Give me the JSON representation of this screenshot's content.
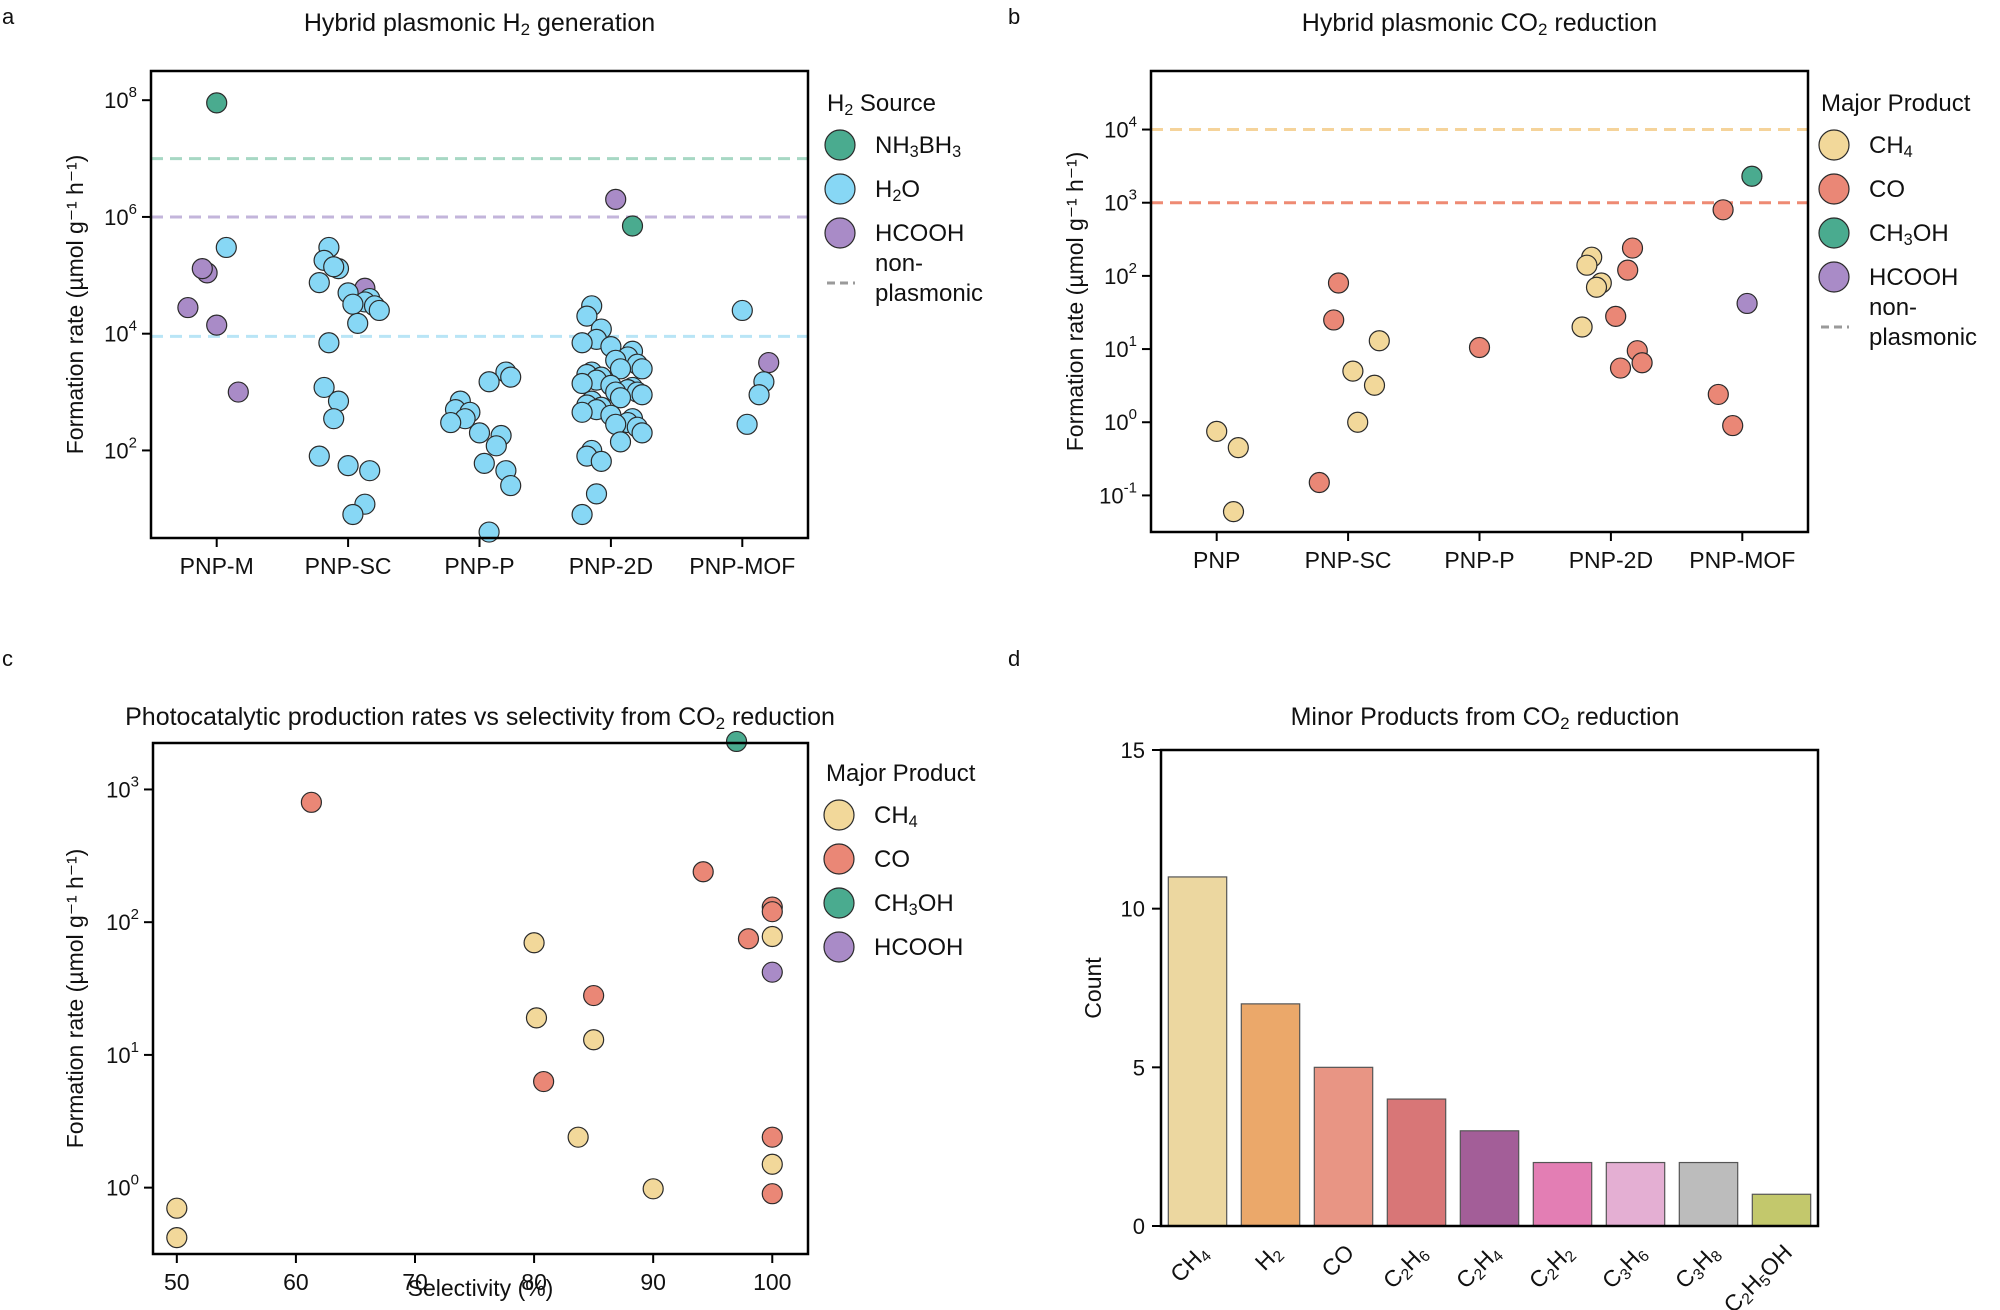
{
  "panel_labels": [
    "a",
    "b",
    "c",
    "d"
  ],
  "colors": {
    "NH3BH3": "#4aab8f",
    "H2O": "#87d7f5",
    "HCOOH": "#a98bc7",
    "CH4": "#f2d89a",
    "CO": "#ea8776",
    "CH3OH": "#4aab8f",
    "nonplasmonic": "#9a9a9a",
    "line_NH3BH3": "#a7d8c4",
    "line_HCOOH": "#c3b5db",
    "line_H2O": "#b9e5f6",
    "line_CH4": "#f5d39a",
    "line_CO": "#ee8a73"
  },
  "chart_data": [
    {
      "type": "scatter",
      "title_parts": [
        "Hybrid plasmonic H",
        "2",
        " generation"
      ],
      "ylabel": "Formation rate (µmol g⁻¹ h⁻¹)",
      "yscale": "log",
      "ylim_exp": [
        0.5,
        8.5
      ],
      "yticks": [
        {
          "base": "10",
          "exp": "8",
          "e": 8
        },
        {
          "base": "10",
          "exp": "6",
          "e": 6
        },
        {
          "base": "10",
          "exp": "4",
          "e": 4
        },
        {
          "base": "10",
          "exp": "2",
          "e": 2
        }
      ],
      "categories": [
        "PNP-M",
        "PNP-SC",
        "PNP-P",
        "PNP-2D",
        "PNP-MOF"
      ],
      "legend_title": {
        "main": "H",
        "sub": "2",
        "rest": " Source"
      },
      "legend": [
        {
          "key": "NH3BH3",
          "parts": [
            [
              "NH",
              ""
            ],
            [
              "3",
              "sub"
            ],
            [
              "BH",
              ""
            ],
            [
              "3",
              "sub"
            ]
          ]
        },
        {
          "key": "H2O",
          "parts": [
            [
              "H",
              ""
            ],
            [
              "2",
              "sub"
            ],
            [
              "O",
              ""
            ]
          ]
        },
        {
          "key": "HCOOH",
          "parts": [
            [
              "HCOOH",
              ""
            ]
          ]
        }
      ],
      "nonplasmonic_label": [
        "non-",
        "plasmonic"
      ],
      "reference_lines": [
        {
          "key": "line_NH3BH3",
          "value": 10000000
        },
        {
          "key": "line_HCOOH",
          "value": 1000000
        },
        {
          "key": "line_H2O",
          "value": 9000
        }
      ],
      "series": [
        {
          "name": "NH3BH3",
          "points": [
            [
              0,
              90000000
            ],
            [
              3,
              700000
            ]
          ]
        },
        {
          "name": "HCOOH",
          "points": [
            [
              0,
              110000
            ],
            [
              0,
              130000
            ],
            [
              0,
              28000
            ],
            [
              0,
              14000
            ],
            [
              0,
              1000
            ],
            [
              1,
              60000
            ],
            [
              3,
              2000000
            ],
            [
              4,
              3200
            ]
          ]
        },
        {
          "name": "H2O",
          "points": [
            [
              0,
              300000
            ],
            [
              1,
              300000
            ],
            [
              1,
              180000
            ],
            [
              1,
              130000
            ],
            [
              1,
              140000
            ],
            [
              1,
              75000
            ],
            [
              1,
              50000
            ],
            [
              1,
              40000
            ],
            [
              1,
              35000
            ],
            [
              1,
              32000
            ],
            [
              1,
              30000
            ],
            [
              1,
              25000
            ],
            [
              1,
              15000
            ],
            [
              1,
              7000
            ],
            [
              1,
              1200
            ],
            [
              1,
              700
            ],
            [
              1,
              350
            ],
            [
              1,
              80
            ],
            [
              1,
              55
            ],
            [
              1,
              45
            ],
            [
              1,
              12
            ],
            [
              1,
              8
            ],
            [
              2,
              2200
            ],
            [
              2,
              1800
            ],
            [
              2,
              1500
            ],
            [
              2,
              700
            ],
            [
              2,
              500
            ],
            [
              2,
              450
            ],
            [
              2,
              350
            ],
            [
              2,
              300
            ],
            [
              2,
              200
            ],
            [
              2,
              180
            ],
            [
              2,
              120
            ],
            [
              2,
              60
            ],
            [
              2,
              45
            ],
            [
              2,
              25
            ],
            [
              2,
              4
            ],
            [
              3,
              30000
            ],
            [
              3,
              20000
            ],
            [
              3,
              12000
            ],
            [
              3,
              8000
            ],
            [
              3,
              7000
            ],
            [
              3,
              6000
            ],
            [
              3,
              5000
            ],
            [
              3,
              4000
            ],
            [
              3,
              3500
            ],
            [
              3,
              3000
            ],
            [
              3,
              2500
            ],
            [
              3,
              2500
            ],
            [
              3,
              2200
            ],
            [
              3,
              2000
            ],
            [
              3,
              1800
            ],
            [
              3,
              1600
            ],
            [
              3,
              1400
            ],
            [
              3,
              1300
            ],
            [
              3,
              1200
            ],
            [
              3,
              1100
            ],
            [
              3,
              1000
            ],
            [
              3,
              1000
            ],
            [
              3,
              900
            ],
            [
              3,
              800
            ],
            [
              3,
              700
            ],
            [
              3,
              600
            ],
            [
              3,
              550
            ],
            [
              3,
              500
            ],
            [
              3,
              450
            ],
            [
              3,
              400
            ],
            [
              3,
              350
            ],
            [
              3,
              300
            ],
            [
              3,
              280
            ],
            [
              3,
              250
            ],
            [
              3,
              200
            ],
            [
              3,
              140
            ],
            [
              3,
              100
            ],
            [
              3,
              80
            ],
            [
              3,
              65
            ],
            [
              3,
              18
            ],
            [
              3,
              8
            ],
            [
              4,
              25000
            ],
            [
              4,
              1500
            ],
            [
              4,
              900
            ],
            [
              4,
              280
            ]
          ]
        }
      ]
    },
    {
      "type": "scatter",
      "title_parts": [
        "Hybrid plasmonic CO",
        "2",
        " reduction"
      ],
      "ylabel": "Formation rate (µmol g⁻¹ h⁻¹)",
      "yscale": "log",
      "ylim_exp": [
        -1.5,
        4.8
      ],
      "yticks": [
        {
          "base": "10",
          "exp": "4",
          "e": 4
        },
        {
          "base": "10",
          "exp": "3",
          "e": 3
        },
        {
          "base": "10",
          "exp": "2",
          "e": 2
        },
        {
          "base": "10",
          "exp": "1",
          "e": 1
        },
        {
          "base": "10",
          "exp": "0",
          "e": 0
        },
        {
          "base": "10",
          "exp": "-1",
          "e": -1
        }
      ],
      "categories": [
        "PNP",
        "PNP-SC",
        "PNP-P",
        "PNP-2D",
        "PNP-MOF"
      ],
      "legend_title": {
        "main": "Major Product",
        "sub": "",
        "rest": ""
      },
      "legend": [
        {
          "key": "CH4",
          "parts": [
            [
              "CH",
              ""
            ],
            [
              "4",
              "sub"
            ]
          ]
        },
        {
          "key": "CO",
          "parts": [
            [
              "CO",
              ""
            ]
          ]
        },
        {
          "key": "CH3OH",
          "parts": [
            [
              "CH",
              ""
            ],
            [
              "3",
              "sub"
            ],
            [
              "OH",
              ""
            ]
          ]
        },
        {
          "key": "HCOOH",
          "parts": [
            [
              "HCOOH",
              ""
            ]
          ]
        }
      ],
      "nonplasmonic_label": [
        "non-",
        "plasmonic"
      ],
      "reference_lines": [
        {
          "key": "line_CH4",
          "value": 10000
        },
        {
          "key": "line_CO",
          "value": 1000
        }
      ],
      "series": [
        {
          "name": "CH4",
          "points": [
            [
              0,
              0.75
            ],
            [
              0,
              0.45
            ],
            [
              0,
              0.06
            ],
            [
              1,
              5
            ],
            [
              1,
              3.2
            ],
            [
              1,
              13
            ],
            [
              1,
              1.0
            ],
            [
              3,
              180
            ],
            [
              3,
              140
            ],
            [
              3,
              80
            ],
            [
              3,
              70
            ],
            [
              3,
              20
            ]
          ]
        },
        {
          "name": "CO",
          "points": [
            [
              1,
              80
            ],
            [
              1,
              25
            ],
            [
              1,
              0.15
            ],
            [
              2,
              10.5
            ],
            [
              3,
              240
            ],
            [
              3,
              120
            ],
            [
              3,
              28
            ],
            [
              3,
              9.5
            ],
            [
              3,
              6.5
            ],
            [
              3,
              5.5
            ],
            [
              4,
              800
            ],
            [
              4,
              2.4
            ],
            [
              4,
              0.9
            ]
          ]
        },
        {
          "name": "CH3OH",
          "points": [
            [
              4,
              2300
            ]
          ]
        },
        {
          "name": "HCOOH",
          "points": [
            [
              4,
              42
            ]
          ]
        }
      ]
    },
    {
      "type": "scatter",
      "title_parts": [
        "Photocatalytic production rates vs selectivity from CO",
        "2",
        " reduction"
      ],
      "xlabel": "Selectivity (%)",
      "ylabel": "Formation rate (µmol g⁻¹ h⁻¹)",
      "xlim": [
        48,
        103
      ],
      "xticks": [
        "50",
        "60",
        "70",
        "80",
        "90",
        "100"
      ],
      "yscale": "log",
      "ylim_exp": [
        -0.5,
        3.35
      ],
      "yticks": [
        {
          "base": "10",
          "exp": "3",
          "e": 3
        },
        {
          "base": "10",
          "exp": "2",
          "e": 2
        },
        {
          "base": "10",
          "exp": "1",
          "e": 1
        },
        {
          "base": "10",
          "exp": "0",
          "e": 0
        }
      ],
      "legend_title": {
        "main": "Major Product",
        "sub": "",
        "rest": ""
      },
      "legend": [
        {
          "key": "CH4",
          "parts": [
            [
              "CH",
              ""
            ],
            [
              "4",
              "sub"
            ]
          ]
        },
        {
          "key": "CO",
          "parts": [
            [
              "CO",
              ""
            ]
          ]
        },
        {
          "key": "CH3OH",
          "parts": [
            [
              "CH",
              ""
            ],
            [
              "3",
              "sub"
            ],
            [
              "OH",
              ""
            ]
          ]
        },
        {
          "key": "HCOOH",
          "parts": [
            [
              "HCOOH",
              ""
            ]
          ]
        }
      ],
      "series": [
        {
          "name": "CH4",
          "points": [
            [
              50,
              0.7
            ],
            [
              50,
              0.42
            ],
            [
              80,
              70
            ],
            [
              80.2,
              19
            ],
            [
              85,
              13
            ],
            [
              83.7,
              2.4
            ],
            [
              90,
              0.98
            ],
            [
              100,
              78
            ],
            [
              100,
              1.5
            ]
          ]
        },
        {
          "name": "CO",
          "points": [
            [
              61.3,
              800
            ],
            [
              94.2,
              240
            ],
            [
              98,
              75
            ],
            [
              100,
              130
            ],
            [
              100,
              120
            ],
            [
              85,
              28
            ],
            [
              80.8,
              6.3
            ],
            [
              100,
              2.4
            ],
            [
              100,
              0.9
            ]
          ]
        },
        {
          "name": "CH3OH",
          "points": [
            [
              97,
              2300
            ]
          ]
        },
        {
          "name": "HCOOH",
          "points": [
            [
              100,
              42
            ]
          ]
        }
      ]
    },
    {
      "type": "bar",
      "title_parts": [
        "Minor Products from CO",
        "2",
        " reduction"
      ],
      "ylabel": "Count",
      "ylim": [
        0,
        15
      ],
      "yticks": [
        "0",
        "5",
        "10",
        "15"
      ],
      "categories": [
        {
          "parts": [
            [
              "CH",
              ""
            ],
            [
              "4",
              "sub"
            ]
          ]
        },
        {
          "parts": [
            [
              "H",
              ""
            ],
            [
              "2",
              "sub"
            ]
          ]
        },
        {
          "parts": [
            [
              "CO",
              ""
            ]
          ]
        },
        {
          "parts": [
            [
              "C",
              ""
            ],
            [
              "2",
              "sub"
            ],
            [
              "H",
              ""
            ],
            [
              "6",
              "sub"
            ]
          ]
        },
        {
          "parts": [
            [
              "C",
              ""
            ],
            [
              "2",
              "sub"
            ],
            [
              "H",
              ""
            ],
            [
              "4",
              "sub"
            ]
          ]
        },
        {
          "parts": [
            [
              "C",
              ""
            ],
            [
              "2",
              "sub"
            ],
            [
              "H",
              ""
            ],
            [
              "2",
              "sub"
            ]
          ]
        },
        {
          "parts": [
            [
              "C",
              ""
            ],
            [
              "3",
              "sub"
            ],
            [
              "H",
              ""
            ],
            [
              "6",
              "sub"
            ]
          ]
        },
        {
          "parts": [
            [
              "C",
              ""
            ],
            [
              "3",
              "sub"
            ],
            [
              "H",
              ""
            ],
            [
              "8",
              "sub"
            ]
          ]
        },
        {
          "parts": [
            [
              "C",
              ""
            ],
            [
              "2",
              "sub"
            ],
            [
              "H",
              ""
            ],
            [
              "5",
              "sub"
            ],
            [
              "OH",
              ""
            ]
          ]
        }
      ],
      "values": [
        11,
        7,
        5,
        4,
        3,
        2,
        2,
        2,
        1
      ],
      "bar_colors": [
        "#ecd7a0",
        "#eba86a",
        "#e89584",
        "#d87677",
        "#a35e98",
        "#e37eb4",
        "#e4afd3",
        "#bcbcbc",
        "#c3c86c"
      ]
    }
  ]
}
